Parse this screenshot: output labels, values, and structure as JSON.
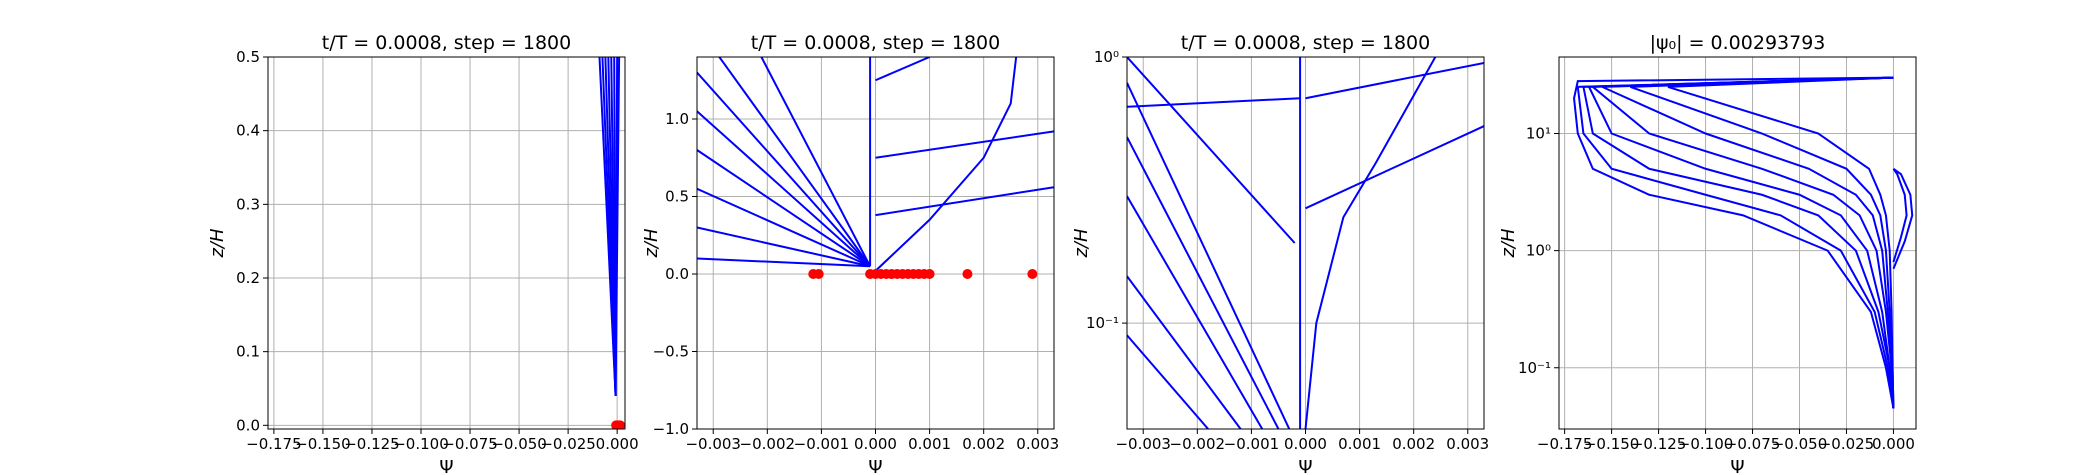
{
  "chart_data": [
    {
      "type": "line",
      "title": "t/T = 0.0008, step = 1800",
      "xlabel": "Ψ",
      "ylabel": "z/H",
      "grid": true,
      "yscale": "linear",
      "xlim": [
        -0.178,
        0.004
      ],
      "ylim": [
        -0.005,
        0.5
      ],
      "xticks": [
        {
          "value": -0.175,
          "label": "−0.175"
        },
        {
          "value": -0.15,
          "label": "−0.150"
        },
        {
          "value": -0.125,
          "label": "−0.125"
        },
        {
          "value": -0.1,
          "label": "−0.100"
        },
        {
          "value": -0.075,
          "label": "−0.075"
        },
        {
          "value": -0.05,
          "label": "−0.050"
        },
        {
          "value": -0.025,
          "label": "−0.025"
        },
        {
          "value": 0,
          "label": "0.000"
        }
      ],
      "yticks": [
        {
          "value": 0,
          "label": "0.0"
        },
        0.1,
        0.2,
        0.3,
        0.4,
        0.5
      ],
      "series": [
        {
          "mode": "line",
          "color": "#0000ff",
          "x": [
            -0.0008,
            -0.009
          ],
          "values": [
            0.04,
            0.5
          ]
        },
        {
          "mode": "line",
          "color": "#0000ff",
          "x": [
            -0.0008,
            -0.0075
          ],
          "values": [
            0.04,
            0.5
          ]
        },
        {
          "mode": "line",
          "color": "#0000ff",
          "x": [
            -0.0008,
            -0.006
          ],
          "values": [
            0.04,
            0.5
          ]
        },
        {
          "mode": "line",
          "color": "#0000ff",
          "x": [
            -0.0008,
            -0.0045
          ],
          "values": [
            0.04,
            0.5
          ]
        },
        {
          "mode": "line",
          "color": "#0000ff",
          "x": [
            -0.0008,
            -0.003
          ],
          "values": [
            0.04,
            0.5
          ]
        },
        {
          "mode": "line",
          "color": "#0000ff",
          "x": [
            -0.0008,
            -0.0015
          ],
          "values": [
            0.04,
            0.5
          ]
        },
        {
          "mode": "line",
          "color": "#0000ff",
          "x": [
            -0.0008,
            0.0
          ],
          "values": [
            0.04,
            0.5
          ]
        },
        {
          "mode": "line",
          "color": "#0000ff",
          "x": [
            -0.0008,
            0.001
          ],
          "values": [
            0.04,
            0.5
          ]
        },
        {
          "mode": "markers",
          "color": "#ff0000",
          "x": [
            -0.0005,
            0.0,
            0.0005,
            0.001,
            0.0015
          ],
          "values": [
            0,
            0,
            0,
            0,
            0
          ]
        }
      ]
    },
    {
      "type": "line",
      "title": "t/T = 0.0008, step = 1800",
      "xlabel": "Ψ",
      "ylabel": "z/H",
      "grid": true,
      "yscale": "linear",
      "xlim": [
        -0.0033,
        0.0033
      ],
      "ylim": [
        -1.0,
        1.4
      ],
      "xticks": [
        {
          "value": -0.003,
          "label": "−0.003"
        },
        {
          "value": -0.002,
          "label": "−0.002"
        },
        {
          "value": -0.001,
          "label": "−0.001"
        },
        {
          "value": 0,
          "label": "0.000"
        },
        0.001,
        0.002,
        0.003
      ],
      "yticks": [
        {
          "value": -1.0,
          "label": "−1.0"
        },
        {
          "value": -0.5,
          "label": "−0.5"
        },
        {
          "value": 0,
          "label": "0.0"
        },
        0.5,
        {
          "value": 1.0,
          "label": "1.0"
        }
      ],
      "series": [
        {
          "mode": "line",
          "color": "#0000ff",
          "x": [
            -0.0033,
            -0.0001
          ],
          "values": [
            0.1,
            0.05
          ]
        },
        {
          "mode": "line",
          "color": "#0000ff",
          "x": [
            -0.0033,
            -0.0001
          ],
          "values": [
            0.3,
            0.05
          ]
        },
        {
          "mode": "line",
          "color": "#0000ff",
          "x": [
            -0.0033,
            -0.0001
          ],
          "values": [
            0.55,
            0.05
          ]
        },
        {
          "mode": "line",
          "color": "#0000ff",
          "x": [
            -0.0033,
            -0.0001
          ],
          "values": [
            0.8,
            0.05
          ]
        },
        {
          "mode": "line",
          "color": "#0000ff",
          "x": [
            -0.0033,
            -0.0001
          ],
          "values": [
            1.05,
            0.05
          ]
        },
        {
          "mode": "line",
          "color": "#0000ff",
          "x": [
            -0.0033,
            -0.0001
          ],
          "values": [
            1.3,
            0.05
          ]
        },
        {
          "mode": "line",
          "color": "#0000ff",
          "x": [
            -0.0033,
            -0.0001
          ],
          "values": [
            1.6,
            0.05
          ]
        },
        {
          "mode": "line",
          "color": "#0000ff",
          "x": [
            -0.0033,
            -0.0001
          ],
          "values": [
            2.2,
            0.05
          ]
        },
        {
          "mode": "line",
          "color": "#0000ff",
          "x": [
            -0.0001,
            -0.0001
          ],
          "values": [
            0.05,
            1.4
          ]
        },
        {
          "mode": "line",
          "color": "#0000ff",
          "x": [
            0.0,
            0.001,
            0.002,
            0.0025,
            0.0026
          ],
          "values": [
            0.02,
            0.35,
            0.75,
            1.1,
            1.4
          ]
        },
        {
          "mode": "line",
          "color": "#0000ff",
          "x": [
            0.0,
            0.0033
          ],
          "values": [
            0.38,
            0.56
          ]
        },
        {
          "mode": "line",
          "color": "#0000ff",
          "x": [
            0.0,
            0.0033
          ],
          "values": [
            0.75,
            0.92
          ]
        },
        {
          "mode": "line",
          "color": "#0000ff",
          "x": [
            0.0,
            0.001
          ],
          "values": [
            1.25,
            1.4
          ]
        },
        {
          "mode": "markers",
          "color": "#ff0000",
          "x": [
            -0.00115,
            -0.00105,
            -0.0001,
            0.0,
            0.0001,
            0.0002,
            0.0003,
            0.0004,
            0.0005,
            0.0006,
            0.0007,
            0.0008,
            0.0009,
            0.001,
            0.0017,
            0.0029
          ],
          "values": [
            0,
            0,
            0,
            0,
            0,
            0,
            0,
            0,
            0,
            0,
            0,
            0,
            0,
            0,
            0,
            0
          ]
        }
      ]
    },
    {
      "type": "line",
      "title": "t/T = 0.0008, step = 1800",
      "xlabel": "Ψ",
      "ylabel": "z/H",
      "grid": true,
      "yscale": "log",
      "xlim": [
        -0.0033,
        0.0033
      ],
      "ylim": [
        0.04,
        1.0
      ],
      "xticks": [
        {
          "value": -0.003,
          "label": "−0.003"
        },
        {
          "value": -0.002,
          "label": "−0.002"
        },
        {
          "value": -0.001,
          "label": "−0.001"
        },
        {
          "value": 0,
          "label": "0.000"
        },
        0.001,
        0.002,
        0.003
      ],
      "yticks": [
        {
          "value": 0.1,
          "label": "10⁻¹"
        },
        {
          "value": 1.0,
          "label": "10⁰"
        }
      ],
      "series": [
        {
          "mode": "line",
          "color": "#0000ff",
          "x": [
            -0.0033,
            -0.0018
          ],
          "values": [
            0.09,
            0.04
          ]
        },
        {
          "mode": "line",
          "color": "#0000ff",
          "x": [
            -0.0033,
            -0.0012
          ],
          "values": [
            0.15,
            0.04
          ]
        },
        {
          "mode": "line",
          "color": "#0000ff",
          "x": [
            -0.0033,
            -0.0008
          ],
          "values": [
            0.3,
            0.04
          ]
        },
        {
          "mode": "line",
          "color": "#0000ff",
          "x": [
            -0.0033,
            -0.0005
          ],
          "values": [
            0.5,
            0.04
          ]
        },
        {
          "mode": "line",
          "color": "#0000ff",
          "x": [
            -0.0033,
            -0.0003
          ],
          "values": [
            0.8,
            0.04
          ]
        },
        {
          "mode": "line",
          "color": "#0000ff",
          "x": [
            -0.0033,
            -0.0002
          ],
          "values": [
            1.0,
            0.2
          ]
        },
        {
          "mode": "line",
          "color": "#0000ff",
          "x": [
            -0.0033,
            -0.0001
          ],
          "values": [
            0.65,
            0.7
          ]
        },
        {
          "mode": "line",
          "color": "#0000ff",
          "x": [
            -0.0001,
            -0.0001
          ],
          "values": [
            0.04,
            1.0
          ]
        },
        {
          "mode": "line",
          "color": "#0000ff",
          "x": [
            0.0,
            0.0002,
            0.0007,
            0.0013,
            0.0024
          ],
          "values": [
            0.04,
            0.1,
            0.25,
            0.4,
            1.0
          ]
        },
        {
          "mode": "line",
          "color": "#0000ff",
          "x": [
            0.0,
            0.0033
          ],
          "values": [
            0.27,
            0.55
          ]
        },
        {
          "mode": "line",
          "color": "#0000ff",
          "x": [
            0.0,
            0.0033
          ],
          "values": [
            0.7,
            0.95
          ]
        }
      ]
    },
    {
      "type": "line",
      "title": "|ψ₀| = 0.00293793",
      "xlabel": "Ψ",
      "ylabel": "z/H",
      "grid": true,
      "yscale": "log",
      "xlim": [
        -0.178,
        0.012
      ],
      "ylim": [
        0.03,
        45
      ],
      "xticks": [
        {
          "value": -0.175,
          "label": "−0.175"
        },
        {
          "value": -0.15,
          "label": "−0.150"
        },
        {
          "value": -0.125,
          "label": "−0.125"
        },
        {
          "value": -0.1,
          "label": "−0.100"
        },
        {
          "value": -0.075,
          "label": "−0.075"
        },
        {
          "value": -0.05,
          "label": "−0.050"
        },
        {
          "value": -0.025,
          "label": "−0.025"
        },
        {
          "value": 0,
          "label": "0.000"
        }
      ],
      "yticks": [
        {
          "value": 0.1,
          "label": "10⁻¹"
        },
        {
          "value": 1.0,
          "label": "10⁰"
        },
        {
          "value": 10,
          "label": "10¹"
        }
      ],
      "series": [
        {
          "mode": "line",
          "color": "#0000ff",
          "x": [
            0,
            -0.004,
            -0.012,
            -0.035,
            -0.08,
            -0.13,
            -0.16,
            -0.168,
            -0.17,
            -0.168,
            0
          ],
          "values": [
            0.045,
            0.1,
            0.3,
            1,
            2,
            3,
            5,
            10,
            20,
            28,
            30
          ]
        },
        {
          "mode": "line",
          "color": "#0000ff",
          "x": [
            0,
            -0.003,
            -0.01,
            -0.028,
            -0.06,
            -0.1,
            -0.15,
            -0.165,
            -0.168,
            0
          ],
          "values": [
            0.045,
            0.1,
            0.3,
            1,
            2,
            3,
            5,
            10,
            25,
            30
          ]
        },
        {
          "mode": "line",
          "color": "#0000ff",
          "x": [
            0,
            -0.002,
            -0.008,
            -0.02,
            -0.04,
            -0.07,
            -0.13,
            -0.16,
            -0.165,
            0
          ],
          "values": [
            0.045,
            0.1,
            0.3,
            1,
            2,
            3,
            5,
            10,
            25,
            30
          ]
        },
        {
          "mode": "line",
          "color": "#0000ff",
          "x": [
            0,
            -0.002,
            -0.006,
            -0.014,
            -0.028,
            -0.05,
            -0.1,
            -0.15,
            -0.162,
            0
          ],
          "values": [
            0.045,
            0.1,
            0.3,
            1,
            2,
            3,
            5,
            10,
            25,
            30
          ]
        },
        {
          "mode": "line",
          "color": "#0000ff",
          "x": [
            0,
            -0.001,
            -0.004,
            -0.009,
            -0.018,
            -0.032,
            -0.07,
            -0.13,
            -0.16,
            0
          ],
          "values": [
            0.045,
            0.1,
            0.3,
            1,
            2,
            3,
            5,
            10,
            25,
            30
          ]
        },
        {
          "mode": "line",
          "color": "#0000ff",
          "x": [
            0,
            -0.001,
            -0.003,
            -0.006,
            -0.011,
            -0.02,
            -0.045,
            -0.1,
            -0.155,
            0
          ],
          "values": [
            0.045,
            0.1,
            0.3,
            1,
            2,
            3,
            5,
            10,
            25,
            30
          ]
        },
        {
          "mode": "line",
          "color": "#0000ff",
          "x": [
            0,
            -0.0005,
            -0.002,
            -0.004,
            -0.007,
            -0.012,
            -0.025,
            -0.07,
            -0.14,
            0
          ],
          "values": [
            0.045,
            0.1,
            0.3,
            1,
            2,
            3,
            5,
            10,
            25,
            30
          ]
        },
        {
          "mode": "line",
          "color": "#0000ff",
          "x": [
            0,
            -0.0005,
            -0.001,
            -0.002,
            -0.004,
            -0.007,
            -0.013,
            -0.04,
            -0.12,
            0
          ],
          "values": [
            0.045,
            0.1,
            0.3,
            1,
            2,
            3,
            5,
            10,
            25,
            30
          ]
        },
        {
          "mode": "line",
          "color": "#0000ff",
          "x": [
            0,
            0.006,
            0.01,
            0.009,
            0.004,
            0
          ],
          "values": [
            0.7,
            1.2,
            2,
            3,
            4.5,
            5
          ]
        },
        {
          "mode": "line",
          "color": "#0000ff",
          "x": [
            0,
            0.004,
            0.007,
            0.006,
            0.002,
            0
          ],
          "values": [
            0.8,
            1.3,
            2,
            3,
            4.5,
            5
          ]
        }
      ]
    }
  ]
}
